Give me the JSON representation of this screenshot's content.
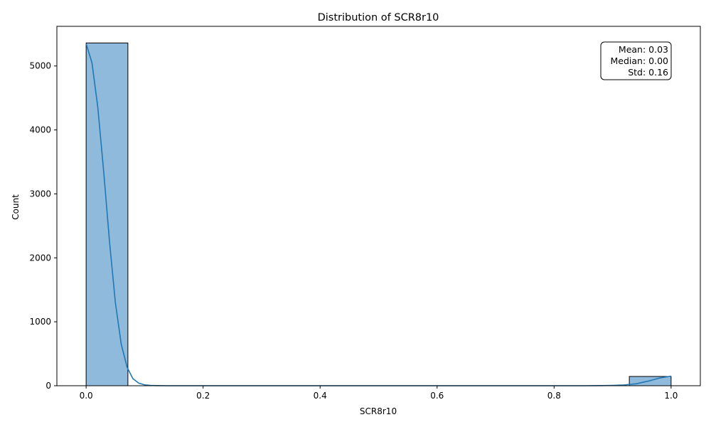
{
  "chart_data": {
    "type": "bar",
    "title": "Distribution of SCR8r10",
    "xlabel": "SCR8r10",
    "ylabel": "Count",
    "xlim": [
      -0.05,
      1.05
    ],
    "ylim": [
      0,
      5620
    ],
    "x_ticks": [
      0.0,
      0.2,
      0.4,
      0.6,
      0.8,
      1.0
    ],
    "x_tick_labels": [
      "0.0",
      "0.2",
      "0.4",
      "0.6",
      "0.8",
      "1.0"
    ],
    "y_ticks": [
      0,
      1000,
      2000,
      3000,
      4000,
      5000
    ],
    "y_tick_labels": [
      "0",
      "1000",
      "2000",
      "3000",
      "4000",
      "5000"
    ],
    "bins": [
      {
        "x0": 0.0,
        "x1": 0.0714,
        "count": 5360
      },
      {
        "x0": 0.9286,
        "x1": 1.0,
        "count": 145
      }
    ],
    "kde": {
      "x": [
        0.0,
        0.01,
        0.02,
        0.03,
        0.04,
        0.05,
        0.06,
        0.07,
        0.08,
        0.09,
        0.1,
        0.11,
        0.12,
        0.14,
        0.16,
        0.2,
        0.4,
        0.6,
        0.8,
        0.85,
        0.88,
        0.9,
        0.92,
        0.94,
        0.96,
        0.98,
        1.0
      ],
      "y": [
        5350,
        5050,
        4350,
        3350,
        2250,
        1300,
        650,
        290,
        110,
        40,
        14,
        5,
        2,
        0,
        0,
        0,
        0,
        0,
        0,
        0,
        2,
        5,
        12,
        30,
        70,
        120,
        150
      ]
    },
    "stats_box": {
      "lines": [
        "Mean: 0.03",
        "Median: 0.00",
        "Std: 0.16"
      ],
      "placement": "top-right"
    },
    "colors": {
      "bar_fill": "#8fbadc",
      "bar_edge": "#000000",
      "kde_line": "#1f77b4"
    }
  }
}
